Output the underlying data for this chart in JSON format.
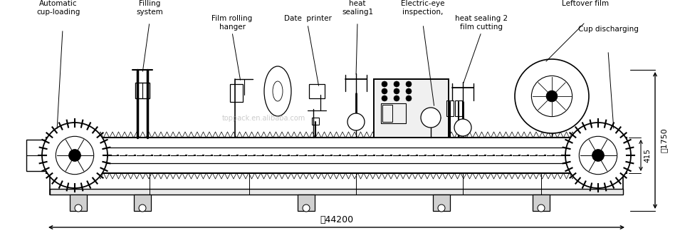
{
  "bg_color": "#ffffff",
  "line_color": "#000000",
  "labels": {
    "automatic_cup_loading": "Automatic\ncup-loading",
    "filling_system": "Filling\nsystem",
    "film_rolling_hanger": "Film rolling\nhanger",
    "date_printer": "Date  printer",
    "heat_sealing1": "heat\nsealing1",
    "electric_eye": "Electric-eye\ninspection,",
    "heat_sealing2": "heat sealing 2\nfilm cutting",
    "leftover_film": "Leftover film",
    "cup_discharging": "Cup discharging",
    "dim_4200": "靐44200",
    "dim_1750": "靐1750",
    "dim_415": "415"
  },
  "watermark": "toppack.en.alibaba.com",
  "font_size_labels": 7.5
}
